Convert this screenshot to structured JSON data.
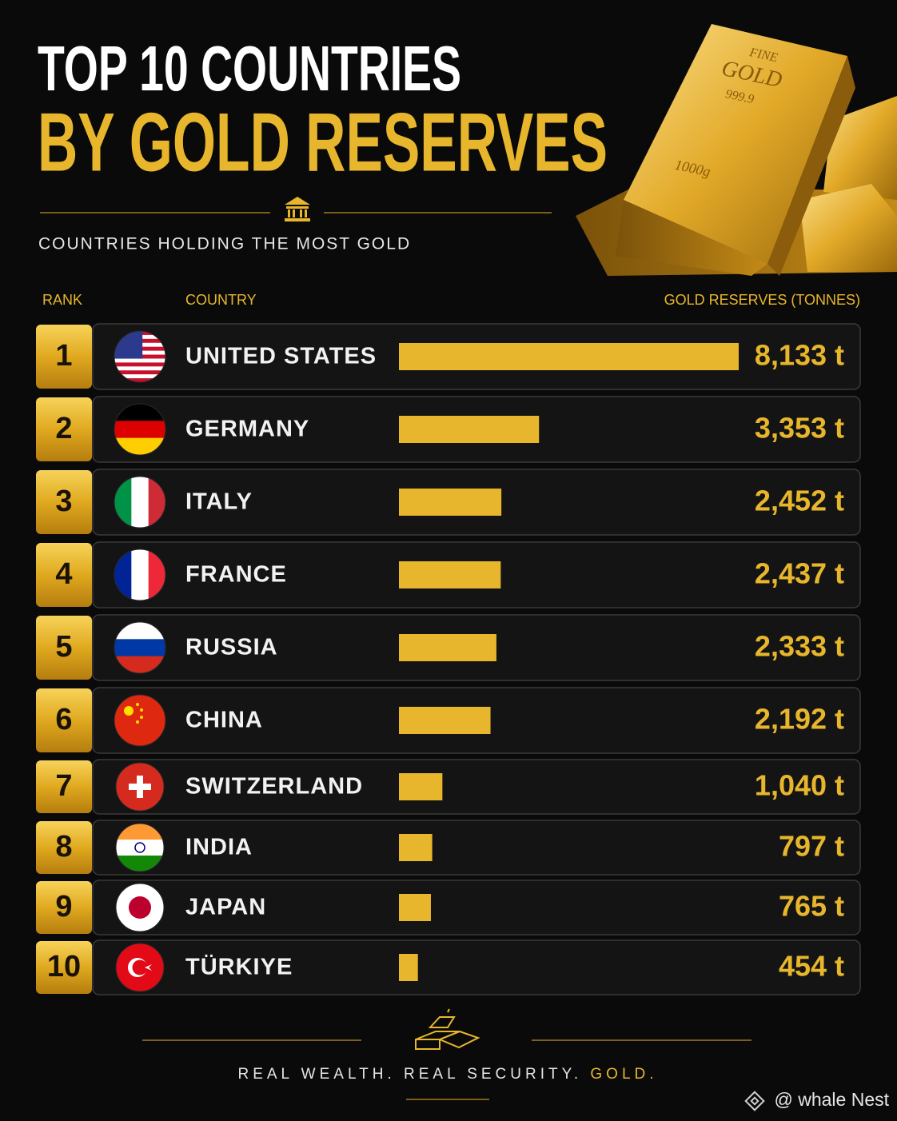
{
  "chart_data": {
    "type": "bar",
    "title": [
      "TOP 10 COUNTRIES",
      "BY GOLD RESERVES"
    ],
    "subtitle": "COUNTRIES HOLDING THE MOST GOLD",
    "headers": {
      "rank": "RANK",
      "country": "COUNTRY",
      "value": "GOLD RESERVES (TONNES)"
    },
    "ranks": [
      1,
      2,
      3,
      4,
      5,
      6,
      7,
      8,
      9,
      10
    ],
    "categories": [
      "UNITED STATES",
      "GERMANY",
      "ITALY",
      "FRANCE",
      "RUSSIA",
      "CHINA",
      "SWITZERLAND",
      "INDIA",
      "JAPAN",
      "TÜRKIYE"
    ],
    "values": [
      8133,
      3353,
      2452,
      2437,
      2333,
      2192,
      1040,
      797,
      765,
      454
    ],
    "value_labels": [
      "8,133 t",
      "3,353 t",
      "2,452 t",
      "2,437 t",
      "2,333 t",
      "2,192 t",
      "1,040 t",
      "797 t",
      "765 t",
      "454 t"
    ],
    "color": "#e8b62c",
    "bar_image_text": [
      "FINE",
      "GOLD",
      "999.9",
      "1000g"
    ],
    "footer": [
      "REAL WEALTH. REAL SECURITY.",
      "GOLD."
    ],
    "watermark": "@ whale Nest"
  }
}
